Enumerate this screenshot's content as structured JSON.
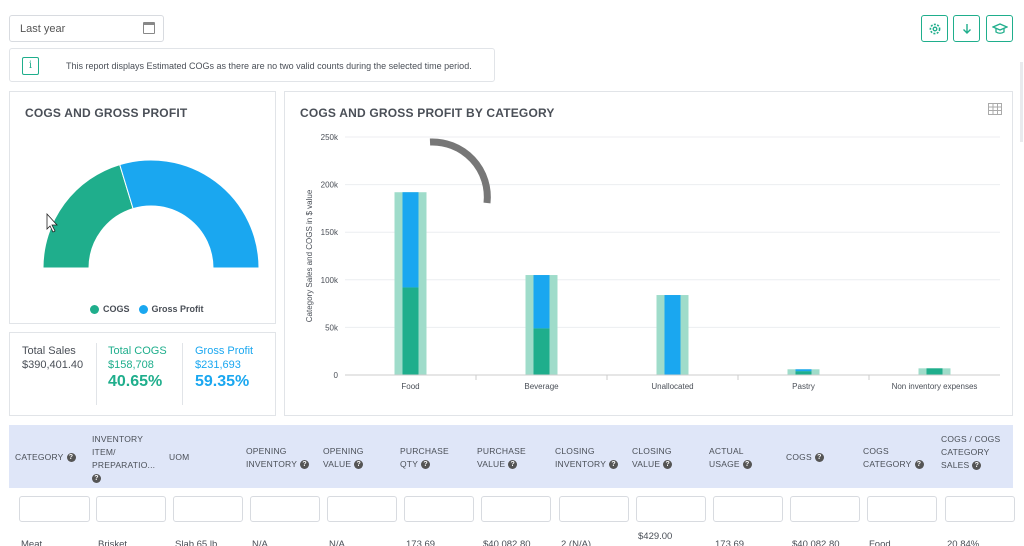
{
  "filter": {
    "date_range": "Last year"
  },
  "notice": "This report displays Estimated COGs as there are no two valid counts during the selected time period.",
  "colors": {
    "cogs": "#1fae8c",
    "gross_profit": "#1aa7f0",
    "sales_bg": "#9fdcca"
  },
  "left_panel": {
    "title": "COGS AND GROSS PROFIT",
    "legend": {
      "cogs": "COGS",
      "gross_profit": "Gross Profit"
    }
  },
  "stats": {
    "total_sales_label": "Total Sales",
    "total_sales_value": "$390,401.40",
    "total_cogs_label": "Total COGS",
    "total_cogs_value": "$158,708",
    "total_cogs_pct": "40.65%",
    "gross_profit_label": "Gross Profit",
    "gross_profit_value": "$231,693",
    "gross_profit_pct": "59.35%"
  },
  "chart_data": [
    {
      "type": "pie",
      "title": "COGS AND GROSS PROFIT",
      "labels": [
        "COGS",
        "Gross Profit"
      ],
      "values": [
        40.65,
        59.35
      ],
      "legend": "bottom"
    },
    {
      "type": "bar",
      "title": "COGS AND GROSS PROFIT BY CATEGORY",
      "ylabel": "Category Sales and COGS in $ value",
      "ylim": [
        0,
        250000
      ],
      "yticks": [
        "0",
        "50k",
        "100k",
        "150k",
        "200k",
        "250k"
      ],
      "categories": [
        "Food",
        "Beverage",
        "Unallocated",
        "Pastry",
        "Non inventory expenses"
      ],
      "series": [
        {
          "values": [
            192000,
            105000,
            84000,
            6000,
            7000
          ]
        },
        {
          "values": [
            92000,
            49000,
            0,
            4000,
            7000
          ]
        },
        {
          "values": [
            100000,
            56000,
            84000,
            2000,
            0
          ]
        }
      ]
    }
  ],
  "table": {
    "headers": [
      {
        "lines": [
          "CATEGORY"
        ],
        "q": true
      },
      {
        "lines": [
          "INVENTORY",
          "ITEM/",
          "PREPARATIO..."
        ],
        "q": true
      },
      {
        "lines": [
          "UOM"
        ],
        "q": false
      },
      {
        "lines": [
          "OPENING",
          "INVENTORY"
        ],
        "q": true
      },
      {
        "lines": [
          "Opening",
          "Value"
        ],
        "q": true
      },
      {
        "lines": [
          "PURCHASE",
          "QTY"
        ],
        "q": true
      },
      {
        "lines": [
          "PURCHASE",
          "VALUE"
        ],
        "q": true
      },
      {
        "lines": [
          "CLOSING",
          "INVENTORY"
        ],
        "q": true
      },
      {
        "lines": [
          "CLOSING",
          "VALUE"
        ],
        "q": true
      },
      {
        "lines": [
          "ACTUAL",
          "USAGE"
        ],
        "q": true
      },
      {
        "lines": [
          "COGS"
        ],
        "q": true
      },
      {
        "lines": [
          "COGS",
          "CATEGORY"
        ],
        "q": true
      },
      {
        "lines": [
          "COGS / COGS",
          "CATEGORY",
          "SALES"
        ],
        "q": true
      }
    ],
    "row": [
      "Meat",
      "Brisket",
      "Slab 65 lb",
      "N/A",
      "N/A",
      "173.69",
      "$40,082.80",
      "2 (N/A)",
      "$429.00",
      "173.69",
      "$40,082.80",
      "Food",
      "20.84%"
    ]
  }
}
